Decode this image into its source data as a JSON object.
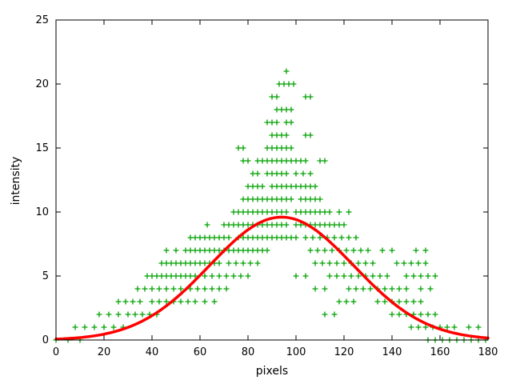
{
  "chart_data": {
    "type": "scatter",
    "title": "",
    "xlabel": "pixels",
    "ylabel": "intensity",
    "xlim": [
      0,
      180
    ],
    "ylim": [
      0,
      25
    ],
    "x_ticks": [
      0,
      20,
      40,
      60,
      80,
      100,
      120,
      140,
      160,
      180
    ],
    "y_ticks": [
      0,
      5,
      10,
      15,
      20,
      25
    ],
    "grid": false,
    "legend": "none",
    "background": "#ffffff",
    "border_color": "#000000",
    "tick_label_color": "#000000",
    "series": [
      {
        "name": "intensity-samples",
        "kind": "points",
        "marker": "plus",
        "marker_color": "#00a000",
        "marker_size": 7,
        "runs_format": "[y, xStart, xEnd, xStep] expands to points (x, y)",
        "runs": [
          [
            0,
            0,
            14,
            5
          ],
          [
            0,
            155,
            180,
            3
          ],
          [
            1,
            8,
            28,
            4
          ],
          [
            1,
            148,
            168,
            3
          ],
          [
            1,
            172,
            176,
            4
          ],
          [
            2,
            18,
            26,
            4
          ],
          [
            2,
            30,
            44,
            3
          ],
          [
            2,
            112,
            116,
            4
          ],
          [
            2,
            140,
            158,
            3
          ],
          [
            3,
            26,
            36,
            3
          ],
          [
            3,
            40,
            58,
            3
          ],
          [
            3,
            62,
            66,
            4
          ],
          [
            3,
            118,
            124,
            3
          ],
          [
            3,
            134,
            152,
            3
          ],
          [
            4,
            34,
            52,
            3
          ],
          [
            4,
            56,
            72,
            3
          ],
          [
            4,
            108,
            112,
            4
          ],
          [
            4,
            122,
            146,
            3
          ],
          [
            4,
            152,
            156,
            4
          ],
          [
            5,
            38,
            58,
            2
          ],
          [
            5,
            62,
            80,
            3
          ],
          [
            5,
            100,
            104,
            4
          ],
          [
            5,
            114,
            138,
            3
          ],
          [
            5,
            146,
            160,
            3
          ],
          [
            6,
            44,
            68,
            2
          ],
          [
            6,
            72,
            86,
            3
          ],
          [
            6,
            108,
            134,
            3
          ],
          [
            6,
            142,
            156,
            3
          ],
          [
            7,
            46,
            50,
            4
          ],
          [
            7,
            54,
            88,
            2
          ],
          [
            7,
            106,
            130,
            3
          ],
          [
            7,
            136,
            140,
            4
          ],
          [
            7,
            150,
            154,
            4
          ],
          [
            8,
            56,
            72,
            2
          ],
          [
            8,
            76,
            100,
            2
          ],
          [
            8,
            104,
            126,
            3
          ],
          [
            9,
            63,
            63,
            1
          ],
          [
            9,
            70,
            96,
            2
          ],
          [
            9,
            100,
            120,
            2
          ],
          [
            10,
            74,
            96,
            2
          ],
          [
            10,
            100,
            114,
            2
          ],
          [
            10,
            118,
            122,
            4
          ],
          [
            11,
            78,
            98,
            2
          ],
          [
            11,
            102,
            110,
            2
          ],
          [
            12,
            80,
            86,
            2
          ],
          [
            12,
            90,
            108,
            2
          ],
          [
            13,
            82,
            84,
            2
          ],
          [
            13,
            88,
            96,
            2
          ],
          [
            13,
            100,
            106,
            3
          ],
          [
            14,
            78,
            80,
            2
          ],
          [
            14,
            84,
            104,
            2
          ],
          [
            14,
            110,
            112,
            2
          ],
          [
            15,
            76,
            78,
            2
          ],
          [
            15,
            88,
            98,
            2
          ],
          [
            16,
            90,
            96,
            2
          ],
          [
            16,
            104,
            106,
            2
          ],
          [
            17,
            88,
            92,
            2
          ],
          [
            17,
            96,
            98,
            2
          ],
          [
            18,
            92,
            98,
            2
          ],
          [
            19,
            90,
            92,
            2
          ],
          [
            19,
            104,
            106,
            2
          ],
          [
            20,
            93,
            99,
            2
          ],
          [
            21,
            96,
            96,
            1
          ]
        ]
      },
      {
        "name": "gaussian-fit",
        "kind": "curve",
        "model": "gaussian",
        "amplitude": 9.6,
        "mean": 94,
        "sigma": 30,
        "color": "#ff0000",
        "linewidth": 3.5
      }
    ]
  }
}
